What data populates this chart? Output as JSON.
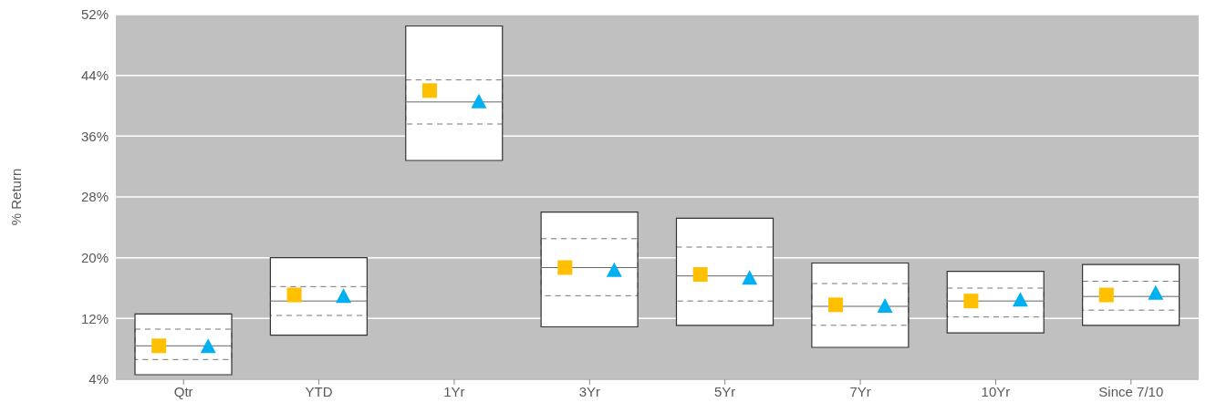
{
  "chart_data": {
    "type": "box",
    "ylabel": "% Return",
    "categories": [
      "Qtr",
      "YTD",
      "1Yr",
      "3Yr",
      "5Yr",
      "7Yr",
      "10Yr",
      "Since 7/10"
    ],
    "boxes": [
      {
        "low": 4.6,
        "q1": 6.6,
        "median": 8.4,
        "q3": 10.6,
        "high": 12.6
      },
      {
        "low": 9.8,
        "q1": 12.4,
        "median": 14.3,
        "q3": 16.2,
        "high": 20.0
      },
      {
        "low": 32.8,
        "q1": 37.6,
        "median": 40.5,
        "q3": 43.4,
        "high": 50.5
      },
      {
        "low": 10.9,
        "q1": 15.0,
        "median": 18.7,
        "q3": 22.5,
        "high": 26.0
      },
      {
        "low": 11.1,
        "q1": 14.3,
        "median": 17.6,
        "q3": 21.4,
        "high": 25.2
      },
      {
        "low": 8.2,
        "q1": 11.1,
        "median": 13.6,
        "q3": 16.6,
        "high": 19.3
      },
      {
        "low": 10.1,
        "q1": 12.2,
        "median": 14.3,
        "q3": 16.0,
        "high": 18.2
      },
      {
        "low": 11.1,
        "q1": 13.1,
        "median": 14.9,
        "q3": 16.9,
        "high": 19.1
      }
    ],
    "series": [
      {
        "type": "scatter",
        "marker": "square",
        "color": "#ffc000",
        "x": [
          "Qtr",
          "YTD",
          "1Yr",
          "3Yr",
          "5Yr",
          "7Yr",
          "10Yr",
          "Since 7/10"
        ],
        "values": [
          8.4,
          15.1,
          42.0,
          18.7,
          17.8,
          13.8,
          14.3,
          15.1
        ]
      },
      {
        "type": "scatter",
        "marker": "triangle",
        "color": "#00b0f0",
        "x": [
          "Qtr",
          "YTD",
          "1Yr",
          "3Yr",
          "5Yr",
          "7Yr",
          "10Yr",
          "Since 7/10"
        ],
        "values": [
          8.3,
          14.9,
          40.5,
          18.3,
          17.3,
          13.6,
          14.4,
          15.3
        ]
      }
    ],
    "ylim": [
      4,
      52
    ],
    "yticks": [
      {
        "value": 4,
        "label": "4%"
      },
      {
        "value": 12,
        "label": "12%"
      },
      {
        "value": 20,
        "label": "20%"
      },
      {
        "value": 28,
        "label": "28%"
      },
      {
        "value": 36,
        "label": "36%"
      },
      {
        "value": 44,
        "label": "44%"
      },
      {
        "value": 52,
        "label": "52%"
      }
    ],
    "grid": "y",
    "legend": false
  }
}
